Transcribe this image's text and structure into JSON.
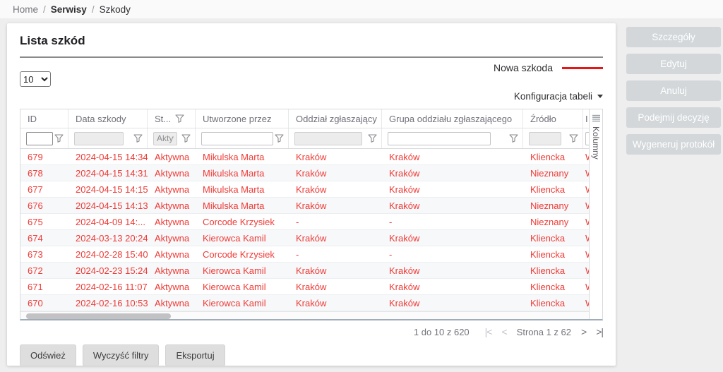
{
  "colors": {
    "accent_red": "#ee3b36",
    "new_damage_line": "#e81616",
    "disabled_action_bg": "#d3d7da"
  },
  "breadcrumb": {
    "items": [
      "Home",
      "Serwisy",
      "Szkody"
    ],
    "separator": "/"
  },
  "header": {
    "title": "Lista szkód",
    "page_size_value": "10",
    "new_item_label": "Nowa szkoda",
    "table_config_label": "Konfiguracja tabeli"
  },
  "side_actions": {
    "buttons": [
      "Szczegóły",
      "Edytuj",
      "Anuluj",
      "Podejmij decyzję",
      "Wygeneruj protokół"
    ]
  },
  "table": {
    "columns_panel_label": "Kolumny",
    "columns": [
      {
        "key": "id",
        "label": "ID",
        "filter_value": "",
        "filter_disabled": false,
        "header_filter_icon": false
      },
      {
        "key": "data-szkody",
        "label": "Data szkody",
        "filter_value": "",
        "filter_disabled": true,
        "header_filter_icon": false
      },
      {
        "key": "status",
        "label": "St...",
        "filter_value": "Aktyw",
        "filter_disabled": true,
        "header_filter_icon": true
      },
      {
        "key": "utworzone-przez",
        "label": "Utworzone przez",
        "filter_value": "",
        "filter_disabled": false,
        "header_filter_icon": false
      },
      {
        "key": "oddzial-zglaszajacy",
        "label": "Oddział zgłaszający",
        "filter_value": "",
        "filter_disabled": true,
        "header_filter_icon": false
      },
      {
        "key": "grupa-oddzialu",
        "label": "Grupa oddziału zgłaszającego",
        "filter_value": "",
        "filter_disabled": false,
        "header_filter_icon": false
      },
      {
        "key": "zrodlo",
        "label": "Źródło",
        "filter_value": "",
        "filter_disabled": true,
        "header_filter_icon": false
      },
      {
        "key": "extra",
        "label": "I",
        "filter_value": "",
        "filter_disabled": false,
        "header_filter_icon": false
      }
    ],
    "rows": [
      [
        "679",
        "2024-04-15 14:34",
        "Aktywna",
        "Mikulska Marta",
        "Kraków",
        "Kraków",
        "Kliencka",
        "W"
      ],
      [
        "678",
        "2024-04-15 14:31",
        "Aktywna",
        "Mikulska Marta",
        "Kraków",
        "Kraków",
        "Nieznany",
        "W"
      ],
      [
        "677",
        "2024-04-15 14:15",
        "Aktywna",
        "Mikulska Marta",
        "Kraków",
        "Kraków",
        "Kliencka",
        "W"
      ],
      [
        "676",
        "2024-04-15 14:13",
        "Aktywna",
        "Mikulska Marta",
        "Kraków",
        "Kraków",
        "Nieznany",
        "W"
      ],
      [
        "675",
        "2024-04-09 14:...",
        "Aktywna",
        "Corcode Krzysiek",
        "-",
        "-",
        "Nieznany",
        "W"
      ],
      [
        "674",
        "2024-03-13 20:24",
        "Aktywna",
        "Kierowca Kamil",
        "Kraków",
        "Kraków",
        "Kliencka",
        "W"
      ],
      [
        "673",
        "2024-02-28 15:40",
        "Aktywna",
        "Corcode Krzysiek",
        "-",
        "-",
        "Kliencka",
        "W"
      ],
      [
        "672",
        "2024-02-23 15:24",
        "Aktywna",
        "Kierowca Kamil",
        "Kraków",
        "Kraków",
        "Kliencka",
        "W"
      ],
      [
        "671",
        "2024-02-16 11:07",
        "Aktywna",
        "Kierowca Kamil",
        "Kraków",
        "Kraków",
        "Kliencka",
        "W"
      ],
      [
        "670",
        "2024-02-16 10:53",
        "Aktywna",
        "Kierowca Kamil",
        "Kraków",
        "Kraków",
        "Kliencka",
        "W"
      ]
    ]
  },
  "footer": {
    "range_summary": "1 do 10 z 620",
    "page_label": "Strona 1 z 62",
    "pager_icons": {
      "first": "|<",
      "prev": "<",
      "next": ">",
      "last": ">|"
    },
    "buttons": [
      "Odśwież",
      "Wyczyść filtry",
      "Eksportuj"
    ]
  }
}
